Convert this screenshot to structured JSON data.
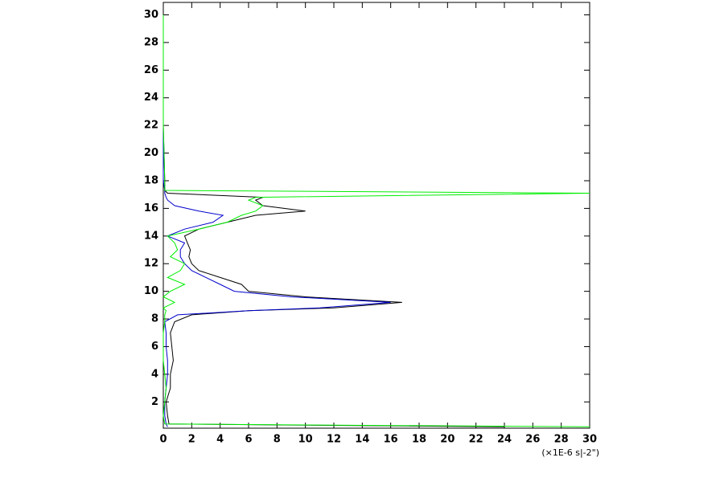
{
  "chart_data": {
    "type": "profile",
    "x_label": "(×1E-6 s|-2\")",
    "xlim": [
      0,
      30
    ],
    "xticks": [
      0,
      2,
      4,
      6,
      8,
      10,
      12,
      14,
      16,
      18,
      20,
      22,
      24,
      26,
      28,
      30
    ],
    "ylim": [
      0.1,
      30.9
    ],
    "yticks": [
      2,
      4,
      6,
      8,
      10,
      12,
      14,
      16,
      18,
      20,
      22,
      24,
      26,
      28,
      30
    ],
    "y": [
      0.2,
      0.4,
      1,
      2,
      3,
      4,
      5,
      6,
      7,
      7.8,
      8.3,
      8.6,
      8.8,
      9.2,
      9.6,
      10,
      10.5,
      11,
      11.5,
      12,
      12.5,
      13,
      13.5,
      14,
      14.5,
      15,
      15.5,
      15.8,
      16.2,
      16.6,
      16.8,
      17.1,
      17.3,
      18,
      22,
      30
    ],
    "series": [
      {
        "color": "#000000",
        "values": [
          24,
          0.4,
          0.3,
          0.2,
          0.5,
          0.5,
          0.7,
          0.6,
          0.5,
          0.8,
          2,
          6,
          12,
          16.8,
          10,
          6,
          5.5,
          4,
          2.5,
          2,
          1.8,
          1.9,
          1.7,
          1.5,
          2.5,
          4.5,
          6.5,
          10,
          7,
          6.5,
          7,
          0.3,
          0.1,
          0.1,
          0,
          0
        ]
      },
      {
        "color": "#0000cc",
        "values": [
          0.3,
          0.2,
          0.1,
          0.1,
          0.2,
          0.3,
          0.3,
          0.2,
          0.2,
          0.1,
          1,
          6,
          11,
          16,
          9,
          5,
          4,
          3,
          2,
          1.5,
          1.2,
          1.2,
          1.5,
          0.3,
          1.5,
          3.5,
          4.2,
          2.5,
          0.8,
          0.3,
          0.2,
          0.1,
          0.1,
          0,
          0,
          0
        ]
      },
      {
        "color": "#00ee00",
        "values": [
          30,
          0.1,
          0,
          0.1,
          0.2,
          0.1,
          0,
          0,
          0,
          0.1,
          0.1,
          0.2,
          0,
          0.8,
          0,
          0.5,
          1.5,
          0.3,
          1.2,
          1.5,
          0.5,
          1,
          0.8,
          0.3,
          2.5,
          4.5,
          5.5,
          6.5,
          7,
          6,
          6.5,
          30,
          0.1,
          0.1,
          0,
          0
        ]
      }
    ]
  }
}
